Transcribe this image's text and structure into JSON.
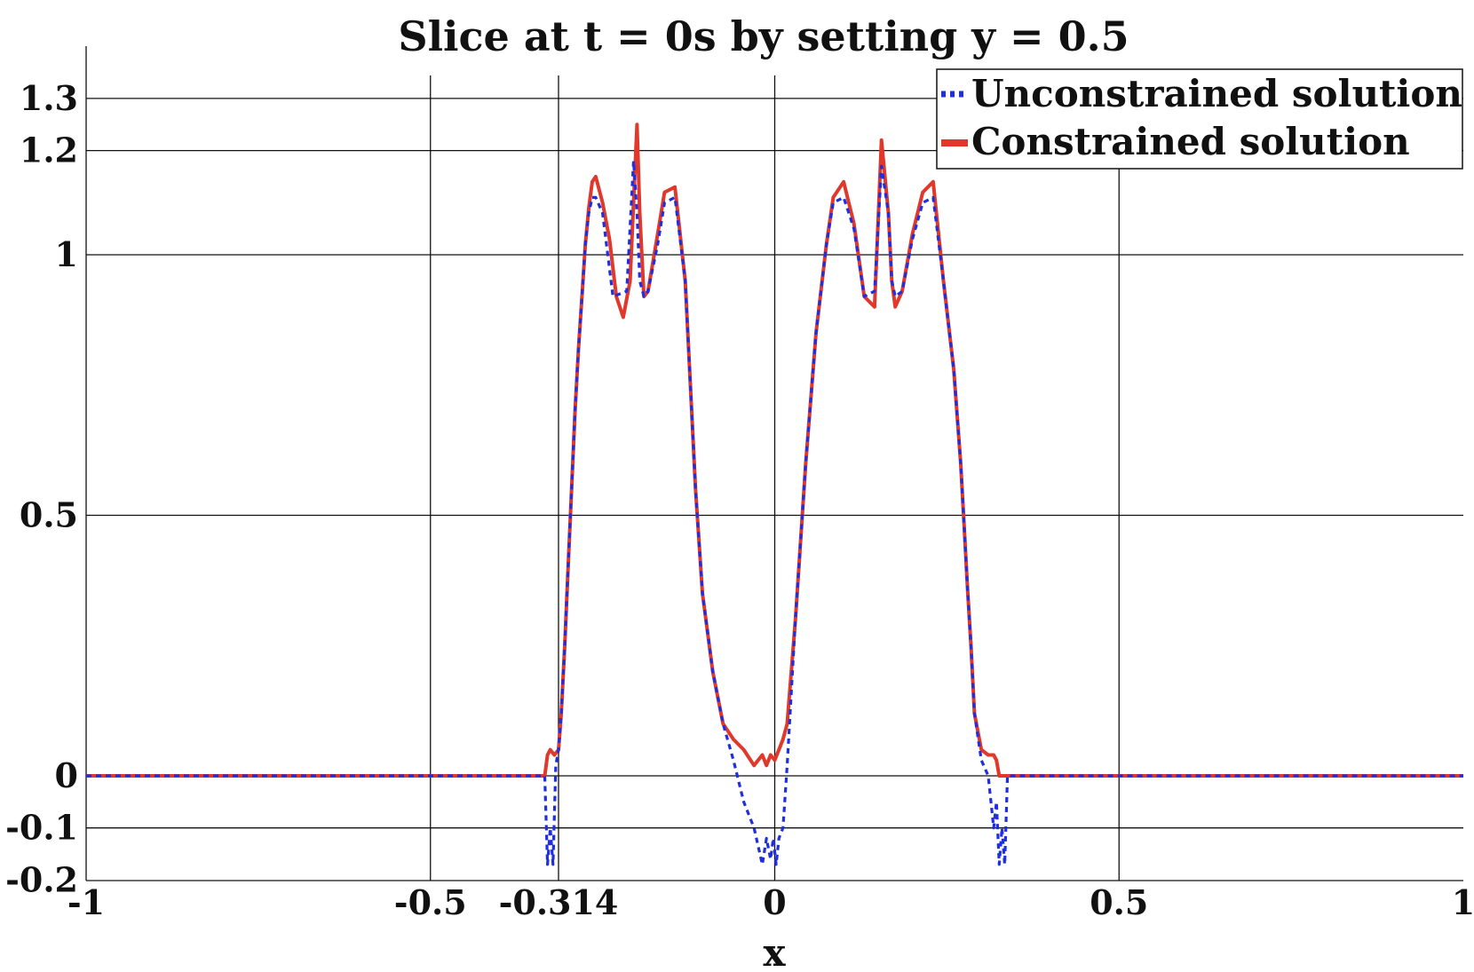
{
  "chart_data": {
    "type": "line",
    "title": "Slice at t = 0s by setting y = 0.5",
    "xlabel": "x",
    "ylabel": "",
    "xlim": [
      -1,
      1
    ],
    "ylim": [
      -0.2,
      1.35
    ],
    "grid": true,
    "legend_position": "top-right",
    "x_ticks": [
      -1,
      -0.5,
      -0.314,
      0,
      0.5,
      1
    ],
    "x_tick_labels": [
      "-1",
      "-0.5",
      "-0.314",
      "0",
      "0.5",
      "1"
    ],
    "y_ticks": [
      -0.2,
      -0.1,
      0,
      0.5,
      1,
      1.2,
      1.3
    ],
    "y_tick_labels": [
      "-0.2",
      "-0.1",
      "0",
      "0.5",
      "1",
      "1.2",
      "1.3"
    ],
    "series": [
      {
        "name": "Unconstrained solution",
        "color": "#1f2fe0",
        "style": "dotted",
        "x": [
          -1,
          -0.334,
          -0.33,
          -0.326,
          -0.322,
          -0.318,
          -0.314,
          -0.31,
          -0.305,
          -0.3,
          -0.295,
          -0.29,
          -0.285,
          -0.28,
          -0.275,
          -0.27,
          -0.265,
          -0.26,
          -0.25,
          -0.235,
          -0.215,
          -0.205,
          -0.2,
          -0.196,
          -0.19,
          -0.184,
          -0.17,
          -0.16,
          -0.145,
          -0.13,
          -0.115,
          -0.105,
          -0.09,
          -0.075,
          -0.06,
          -0.045,
          -0.03,
          -0.018,
          -0.012,
          -0.006,
          -0.002,
          0.002,
          0.006,
          0.012,
          0.018,
          0.03,
          0.045,
          0.06,
          0.075,
          0.085,
          0.1,
          0.115,
          0.13,
          0.145,
          0.155,
          0.165,
          0.17,
          0.175,
          0.185,
          0.2,
          0.215,
          0.23,
          0.245,
          0.26,
          0.27,
          0.275,
          0.28,
          0.285,
          0.29,
          0.3,
          0.31,
          0.318,
          0.322,
          0.326,
          0.33,
          0.334,
          0.338,
          1
        ],
        "y": [
          0,
          0,
          -0.17,
          -0.1,
          -0.17,
          0.02,
          0.05,
          0.12,
          0.25,
          0.4,
          0.55,
          0.7,
          0.82,
          0.92,
          1.02,
          1.08,
          1.11,
          1.11,
          1.08,
          0.92,
          0.93,
          1.18,
          1.08,
          0.95,
          0.92,
          0.93,
          1.02,
          1.1,
          1.11,
          0.95,
          0.55,
          0.35,
          0.2,
          0.1,
          0.03,
          -0.05,
          -0.1,
          -0.17,
          -0.12,
          -0.16,
          -0.12,
          -0.17,
          -0.12,
          -0.1,
          0.02,
          0.3,
          0.6,
          0.85,
          1.02,
          1.1,
          1.11,
          1.05,
          0.92,
          0.93,
          1.17,
          1.08,
          0.95,
          0.92,
          0.93,
          1.03,
          1.1,
          1.11,
          0.95,
          0.78,
          0.6,
          0.48,
          0.36,
          0.25,
          0.12,
          0.03,
          0,
          -0.1,
          -0.05,
          -0.17,
          -0.1,
          -0.17,
          0,
          0
        ]
      },
      {
        "name": "Constrained solution",
        "color": "#e0382a",
        "style": "solid",
        "x": [
          -1,
          -0.334,
          -0.33,
          -0.326,
          -0.32,
          -0.314,
          -0.31,
          -0.305,
          -0.3,
          -0.295,
          -0.29,
          -0.285,
          -0.28,
          -0.275,
          -0.27,
          -0.265,
          -0.26,
          -0.25,
          -0.24,
          -0.23,
          -0.22,
          -0.21,
          -0.2,
          -0.196,
          -0.19,
          -0.184,
          -0.17,
          -0.16,
          -0.145,
          -0.13,
          -0.115,
          -0.105,
          -0.09,
          -0.075,
          -0.06,
          -0.045,
          -0.03,
          -0.018,
          -0.012,
          -0.006,
          0,
          0.006,
          0.012,
          0.018,
          0.03,
          0.045,
          0.06,
          0.075,
          0.085,
          0.1,
          0.115,
          0.13,
          0.145,
          0.155,
          0.165,
          0.17,
          0.175,
          0.185,
          0.2,
          0.215,
          0.23,
          0.245,
          0.26,
          0.27,
          0.275,
          0.28,
          0.285,
          0.29,
          0.3,
          0.31,
          0.318,
          0.322,
          0.326,
          0.33,
          0.334,
          0.338,
          1
        ],
        "y": [
          0,
          0,
          0.04,
          0.05,
          0.04,
          0.05,
          0.12,
          0.25,
          0.4,
          0.55,
          0.7,
          0.82,
          0.92,
          1.02,
          1.09,
          1.14,
          1.15,
          1.1,
          1.03,
          0.92,
          0.88,
          0.95,
          1.25,
          1.08,
          0.92,
          0.93,
          1.04,
          1.12,
          1.13,
          0.95,
          0.55,
          0.35,
          0.2,
          0.1,
          0.07,
          0.05,
          0.02,
          0.04,
          0.02,
          0.04,
          0.03,
          0.05,
          0.07,
          0.1,
          0.3,
          0.6,
          0.85,
          1.02,
          1.11,
          1.14,
          1.06,
          0.92,
          0.9,
          1.22,
          1.08,
          0.95,
          0.9,
          0.93,
          1.04,
          1.12,
          1.14,
          0.95,
          0.78,
          0.6,
          0.48,
          0.36,
          0.25,
          0.12,
          0.05,
          0.04,
          0.04,
          0.03,
          0,
          0,
          0,
          0,
          0
        ]
      }
    ]
  }
}
